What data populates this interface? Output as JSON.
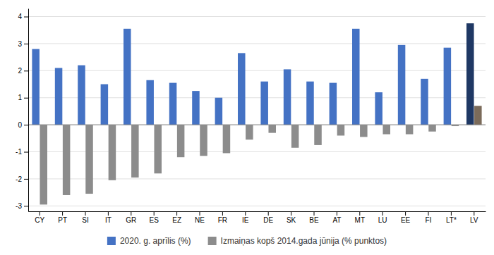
{
  "chart_data": {
    "type": "bar",
    "categories": [
      "CY",
      "PT",
      "SI",
      "IT",
      "GR",
      "ES",
      "EZ",
      "NE",
      "FR",
      "IE",
      "DE",
      "SK",
      "BE",
      "AT",
      "MT",
      "LU",
      "EE",
      "FI",
      "LT*",
      "LV"
    ],
    "series": [
      {
        "name": "2020. g. aprīlis (%)",
        "color": "#4472c4",
        "colors": [
          "#4472c4",
          "#4472c4",
          "#4472c4",
          "#4472c4",
          "#4472c4",
          "#4472c4",
          "#4472c4",
          "#4472c4",
          "#4472c4",
          "#4472c4",
          "#4472c4",
          "#4472c4",
          "#4472c4",
          "#4472c4",
          "#4472c4",
          "#4472c4",
          "#4472c4",
          "#4472c4",
          "#4472c4",
          "#1f3864"
        ],
        "values": [
          2.8,
          2.1,
          2.2,
          1.5,
          3.55,
          1.65,
          1.55,
          1.25,
          1.0,
          2.65,
          1.6,
          2.05,
          1.6,
          1.55,
          3.55,
          1.2,
          2.95,
          1.7,
          2.85,
          3.75
        ]
      },
      {
        "name": "Izmaiņas kopš 2014.gada jūnija (% punktos)",
        "color": "#8c8c8c",
        "colors": [
          "#8c8c8c",
          "#8c8c8c",
          "#8c8c8c",
          "#8c8c8c",
          "#8c8c8c",
          "#8c8c8c",
          "#8c8c8c",
          "#8c8c8c",
          "#8c8c8c",
          "#8c8c8c",
          "#8c8c8c",
          "#8c8c8c",
          "#8c8c8c",
          "#8c8c8c",
          "#8c8c8c",
          "#8c8c8c",
          "#8c8c8c",
          "#8c8c8c",
          "#8c8c8c",
          "#7b6b5a"
        ],
        "values": [
          -2.95,
          -2.6,
          -2.55,
          -2.05,
          -1.95,
          -1.8,
          -1.2,
          -1.15,
          -1.05,
          -0.55,
          -0.3,
          -0.85,
          -0.75,
          -0.4,
          -0.45,
          -0.35,
          -0.35,
          -0.25,
          -0.05,
          0.7
        ]
      }
    ],
    "ylim": [
      -3.2,
      4.3
    ],
    "yticks": [
      -3,
      -2,
      -1,
      0,
      1,
      2,
      3,
      4
    ],
    "grid": true,
    "legend": "bottom"
  }
}
